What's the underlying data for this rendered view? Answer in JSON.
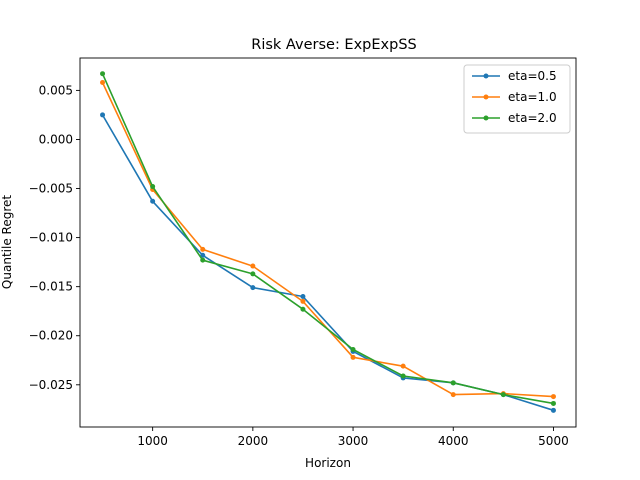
{
  "chart_data": {
    "type": "line",
    "title": "Risk Averse: ExpExpSS",
    "xlabel": "Horizon",
    "ylabel": "Quantile Regret",
    "xlim": [
      275,
      5225
    ],
    "ylim": [
      -0.0293,
      0.0083
    ],
    "x_ticks": [
      1000,
      2000,
      3000,
      4000,
      5000
    ],
    "x_tick_labels": [
      "1000",
      "2000",
      "3000",
      "4000",
      "5000"
    ],
    "y_ticks": [
      0.005,
      0.0,
      -0.005,
      -0.01,
      -0.015,
      -0.02,
      -0.025
    ],
    "y_tick_labels": [
      "0.005",
      "0.000",
      "−0.005",
      "−0.010",
      "−0.015",
      "−0.020",
      "−0.025"
    ],
    "x": [
      500,
      1000,
      1500,
      2000,
      2500,
      3000,
      3500,
      4000,
      4500,
      5000
    ],
    "series": [
      {
        "name": "eta=0.5",
        "color": "#1f77b4",
        "values": [
          0.0025,
          -0.0063,
          -0.0118,
          -0.0151,
          -0.016,
          -0.0216,
          -0.0243,
          -0.0248,
          -0.026,
          -0.0276
        ]
      },
      {
        "name": "eta=1.0",
        "color": "#ff7f0e",
        "values": [
          0.0058,
          -0.0051,
          -0.0112,
          -0.0129,
          -0.0165,
          -0.0222,
          -0.0231,
          -0.026,
          -0.0259,
          -0.0262
        ]
      },
      {
        "name": "eta=2.0",
        "color": "#2ca02c",
        "values": [
          0.0067,
          -0.0048,
          -0.0123,
          -0.0137,
          -0.0173,
          -0.0214,
          -0.0241,
          -0.0248,
          -0.026,
          -0.0269
        ]
      }
    ],
    "legend_position": "top-right",
    "grid": false
  }
}
